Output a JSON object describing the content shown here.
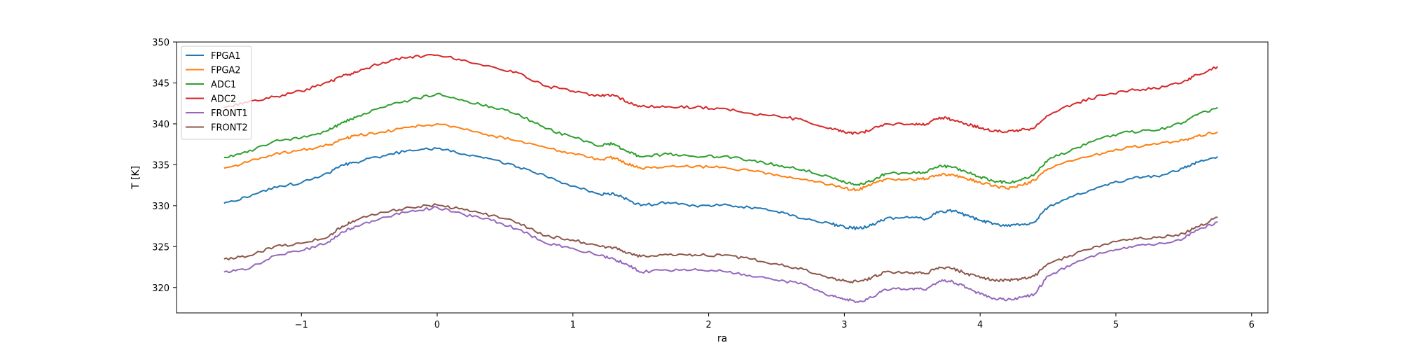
{
  "chart_data": {
    "type": "line",
    "title": "",
    "xlabel": "ra",
    "ylabel": "T [K]",
    "xlim": [
      -1.92,
      6.12
    ],
    "ylim": [
      316.9,
      350
    ],
    "xticks": [
      -1,
      0,
      1,
      2,
      3,
      4,
      5,
      6
    ],
    "xtick_labels": [
      "−1",
      "0",
      "1",
      "2",
      "3",
      "4",
      "5",
      "6"
    ],
    "yticks": [
      320,
      325,
      330,
      335,
      340,
      345,
      350
    ],
    "ytick_labels": [
      "320",
      "325",
      "330",
      "335",
      "340",
      "345",
      "350"
    ],
    "grid": false,
    "legend_position": "top-left",
    "x": [
      -1.57,
      -1.4,
      -1.2,
      -1.0,
      -0.8,
      -0.7,
      -0.6,
      -0.4,
      -0.2,
      0.0,
      0.2,
      0.4,
      0.6,
      0.8,
      1.0,
      1.2,
      1.3,
      1.4,
      1.5,
      1.7,
      1.9,
      2.1,
      2.3,
      2.5,
      2.7,
      2.9,
      3.0,
      3.1,
      3.2,
      3.3,
      3.5,
      3.6,
      3.7,
      3.8,
      3.9,
      4.0,
      4.1,
      4.2,
      4.3,
      4.4,
      4.5,
      4.7,
      4.9,
      5.1,
      5.3,
      5.5,
      5.6,
      5.75
    ],
    "series": [
      {
        "name": "FPGA1",
        "color": "#1f77b4",
        "values": [
          330.3,
          331.0,
          332.3,
          332.8,
          334.0,
          335.0,
          335.3,
          336.1,
          336.8,
          337.0,
          336.3,
          335.7,
          334.7,
          333.6,
          332.4,
          331.4,
          331.5,
          330.8,
          330.0,
          330.4,
          330.0,
          330.1,
          329.8,
          329.3,
          328.4,
          327.8,
          327.4,
          327.2,
          327.6,
          328.4,
          328.6,
          328.4,
          329.3,
          329.4,
          328.8,
          328.2,
          327.8,
          327.5,
          327.7,
          328.0,
          329.8,
          331.3,
          332.4,
          333.3,
          333.6,
          334.6,
          335.3,
          336.0
        ]
      },
      {
        "name": "FPGA2",
        "color": "#ff7f0e",
        "values": [
          334.6,
          335.3,
          336.3,
          336.8,
          337.4,
          338.1,
          338.6,
          339.0,
          339.6,
          340.0,
          339.3,
          338.6,
          337.9,
          337.1,
          336.4,
          335.6,
          335.9,
          335.1,
          334.6,
          334.8,
          334.8,
          334.7,
          334.3,
          333.8,
          333.2,
          332.6,
          332.1,
          331.9,
          332.6,
          333.2,
          333.2,
          333.3,
          333.8,
          333.8,
          333.3,
          332.9,
          332.4,
          332.1,
          332.5,
          333.1,
          334.5,
          335.6,
          336.4,
          337.2,
          337.5,
          338.0,
          338.5,
          339.0
        ]
      },
      {
        "name": "ADC1",
        "color": "#2ca02c",
        "values": [
          335.9,
          336.5,
          337.9,
          338.3,
          339.2,
          340.2,
          340.8,
          342.0,
          342.9,
          343.7,
          342.8,
          342.1,
          341.2,
          339.4,
          338.4,
          337.3,
          337.6,
          336.6,
          336.0,
          336.3,
          336.0,
          336.0,
          335.6,
          335.0,
          334.4,
          333.5,
          332.9,
          332.6,
          333.0,
          333.9,
          334.0,
          334.1,
          334.9,
          334.7,
          334.1,
          333.5,
          333.0,
          332.8,
          333.1,
          333.8,
          335.6,
          337.0,
          338.3,
          339.0,
          339.2,
          340.2,
          341.1,
          342.0
        ]
      },
      {
        "name": "ADC2",
        "color": "#d62728",
        "values": [
          342.0,
          342.6,
          343.3,
          344.0,
          345.1,
          345.8,
          346.3,
          347.5,
          348.2,
          348.4,
          347.8,
          347.0,
          346.2,
          344.6,
          344.0,
          343.4,
          343.5,
          342.7,
          342.1,
          342.1,
          342.0,
          341.9,
          341.3,
          341.0,
          340.4,
          339.5,
          339.0,
          338.8,
          339.3,
          340.0,
          340.0,
          339.9,
          340.8,
          340.5,
          340.0,
          339.5,
          339.1,
          339.0,
          339.2,
          339.5,
          341.0,
          342.5,
          343.5,
          344.1,
          344.3,
          345.2,
          346.0,
          347.0
        ]
      },
      {
        "name": "FRONT1",
        "color": "#9467bd",
        "values": [
          321.9,
          322.2,
          323.9,
          324.5,
          325.6,
          326.8,
          327.5,
          328.6,
          329.3,
          329.8,
          328.9,
          328.2,
          327.1,
          325.4,
          324.8,
          323.9,
          323.5,
          322.8,
          321.9,
          322.1,
          322.3,
          322.0,
          321.5,
          320.9,
          320.4,
          319.0,
          318.6,
          318.2,
          318.8,
          319.8,
          319.9,
          319.7,
          320.8,
          320.7,
          320.0,
          319.2,
          318.7,
          318.5,
          318.8,
          319.2,
          321.4,
          323.0,
          324.2,
          325.0,
          325.3,
          326.0,
          327.0,
          328.0
        ]
      },
      {
        "name": "FRONT2",
        "color": "#8c564b",
        "values": [
          323.5,
          323.8,
          325.0,
          325.4,
          326.2,
          327.5,
          328.2,
          329.2,
          329.8,
          330.1,
          329.5,
          328.8,
          327.9,
          326.3,
          325.8,
          325.0,
          324.9,
          324.2,
          323.8,
          324.0,
          324.0,
          323.9,
          323.5,
          322.9,
          322.2,
          321.2,
          320.8,
          320.7,
          321.2,
          321.9,
          321.8,
          321.7,
          322.5,
          322.3,
          321.7,
          321.2,
          320.9,
          320.9,
          321.0,
          321.4,
          322.9,
          324.1,
          325.2,
          325.9,
          326.1,
          326.6,
          327.4,
          328.6
        ]
      }
    ]
  }
}
